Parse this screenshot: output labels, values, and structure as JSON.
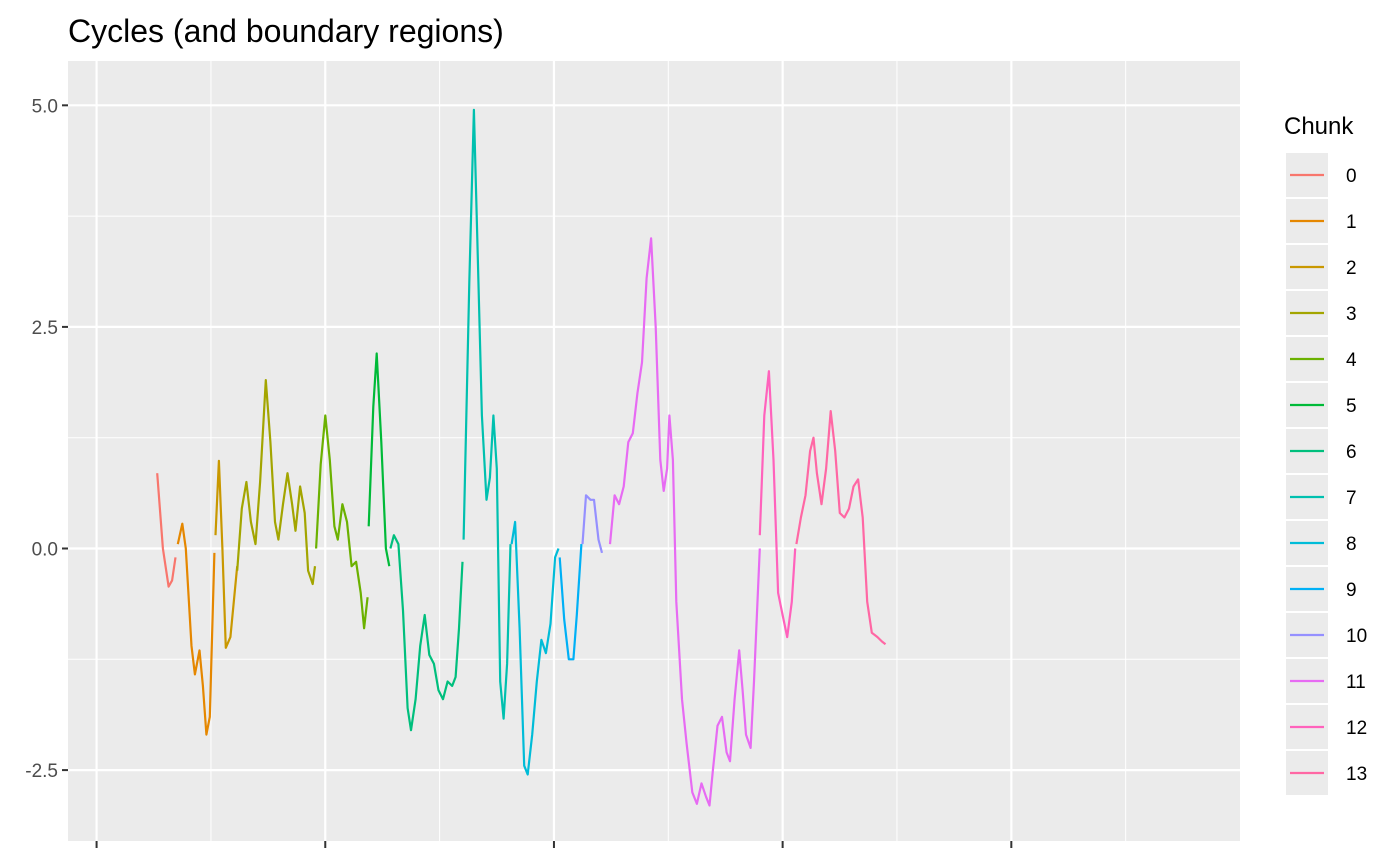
{
  "chart_data": {
    "type": "line",
    "title": "Cycles (and boundary regions)",
    "xlabel": "",
    "ylabel": "",
    "xlim": [
      -0.25,
      10
    ],
    "ylim": [
      -3.3,
      5.5
    ],
    "y_ticks": [
      -2.5,
      0.0,
      2.5,
      5.0
    ],
    "y_tick_labels": [
      "-2.5",
      "0.0",
      "2.5",
      "5.0"
    ],
    "x_ticks": [
      0,
      2,
      4,
      6,
      8
    ],
    "x_tick_labels": [
      "",
      "",
      "",
      "",
      ""
    ],
    "grid": true,
    "panel_background": "#ebebeb",
    "legend": {
      "title": "Chunk",
      "position": "right"
    },
    "series": [
      {
        "name": "0",
        "color": "#F8766D",
        "points": [
          [
            0.53,
            0.85
          ],
          [
            0.58,
            0.0
          ],
          [
            0.63,
            -0.43
          ],
          [
            0.66,
            -0.36
          ],
          [
            0.69,
            -0.1
          ]
        ]
      },
      {
        "name": "1",
        "color": "#E58700",
        "points": [
          [
            0.71,
            0.05
          ],
          [
            0.75,
            0.28
          ],
          [
            0.78,
            0.0
          ],
          [
            0.83,
            -1.1
          ],
          [
            0.86,
            -1.42
          ],
          [
            0.9,
            -1.15
          ],
          [
            0.93,
            -1.55
          ],
          [
            0.96,
            -2.1
          ],
          [
            0.99,
            -1.9
          ],
          [
            1.03,
            -0.05
          ]
        ]
      },
      {
        "name": "2",
        "color": "#C99800",
        "points": [
          [
            1.04,
            0.15
          ],
          [
            1.07,
            0.99
          ],
          [
            1.1,
            0.0
          ],
          [
            1.13,
            -1.12
          ],
          [
            1.17,
            -1.0
          ],
          [
            1.2,
            -0.6
          ],
          [
            1.23,
            -0.2
          ]
        ]
      },
      {
        "name": "3",
        "color": "#A3A500",
        "points": [
          [
            1.23,
            -0.25
          ],
          [
            1.27,
            0.45
          ],
          [
            1.31,
            0.75
          ],
          [
            1.35,
            0.3
          ],
          [
            1.39,
            0.05
          ],
          [
            1.43,
            0.75
          ],
          [
            1.48,
            1.9
          ],
          [
            1.52,
            1.2
          ],
          [
            1.56,
            0.3
          ],
          [
            1.59,
            0.1
          ],
          [
            1.63,
            0.5
          ],
          [
            1.67,
            0.85
          ],
          [
            1.71,
            0.5
          ],
          [
            1.74,
            0.2
          ],
          [
            1.78,
            0.7
          ],
          [
            1.82,
            0.4
          ],
          [
            1.85,
            -0.25
          ],
          [
            1.89,
            -0.4
          ],
          [
            1.91,
            -0.2
          ]
        ]
      },
      {
        "name": "4",
        "color": "#6BB100",
        "points": [
          [
            1.92,
            0.0
          ],
          [
            1.96,
            0.95
          ],
          [
            2.0,
            1.5
          ],
          [
            2.04,
            1.0
          ],
          [
            2.08,
            0.25
          ],
          [
            2.11,
            0.1
          ],
          [
            2.15,
            0.5
          ],
          [
            2.19,
            0.3
          ],
          [
            2.23,
            -0.2
          ],
          [
            2.27,
            -0.15
          ],
          [
            2.31,
            -0.5
          ],
          [
            2.34,
            -0.9
          ],
          [
            2.37,
            -0.55
          ]
        ]
      },
      {
        "name": "5",
        "color": "#00BA38",
        "points": [
          [
            2.38,
            0.25
          ],
          [
            2.42,
            1.6
          ],
          [
            2.45,
            2.2
          ],
          [
            2.49,
            1.2
          ],
          [
            2.53,
            0.0
          ],
          [
            2.56,
            -0.2
          ]
        ]
      },
      {
        "name": "6",
        "color": "#00BF7D",
        "points": [
          [
            2.57,
            0.0
          ],
          [
            2.6,
            0.15
          ],
          [
            2.64,
            0.05
          ],
          [
            2.68,
            -0.7
          ],
          [
            2.72,
            -1.8
          ],
          [
            2.75,
            -2.05
          ],
          [
            2.79,
            -1.7
          ],
          [
            2.83,
            -1.1
          ],
          [
            2.87,
            -0.75
          ],
          [
            2.91,
            -1.2
          ],
          [
            2.95,
            -1.3
          ],
          [
            2.99,
            -1.6
          ],
          [
            3.03,
            -1.7
          ],
          [
            3.07,
            -1.5
          ],
          [
            3.11,
            -1.55
          ],
          [
            3.14,
            -1.45
          ],
          [
            3.17,
            -0.9
          ],
          [
            3.2,
            -0.15
          ]
        ]
      },
      {
        "name": "7",
        "color": "#00C0AF",
        "points": [
          [
            3.21,
            0.1
          ],
          [
            3.26,
            3.0
          ],
          [
            3.3,
            4.95
          ],
          [
            3.33,
            3.5
          ],
          [
            3.37,
            1.5
          ],
          [
            3.41,
            0.55
          ],
          [
            3.44,
            0.8
          ],
          [
            3.47,
            1.5
          ],
          [
            3.5,
            0.9
          ],
          [
            3.53,
            -1.5
          ],
          [
            3.56,
            -1.92
          ],
          [
            3.59,
            -1.3
          ],
          [
            3.62,
            0.05
          ]
        ]
      },
      {
        "name": "8",
        "color": "#00BCD8",
        "points": [
          [
            3.63,
            0.05
          ],
          [
            3.66,
            0.3
          ],
          [
            3.7,
            -0.9
          ],
          [
            3.74,
            -2.45
          ],
          [
            3.77,
            -2.55
          ],
          [
            3.81,
            -2.1
          ],
          [
            3.85,
            -1.5
          ],
          [
            3.89,
            -1.03
          ],
          [
            3.93,
            -1.18
          ],
          [
            3.97,
            -0.85
          ],
          [
            4.01,
            -0.1
          ],
          [
            4.04,
            0.0
          ]
        ]
      },
      {
        "name": "9",
        "color": "#00B0F6",
        "points": [
          [
            4.05,
            -0.1
          ],
          [
            4.09,
            -0.8
          ],
          [
            4.13,
            -1.25
          ],
          [
            4.17,
            -1.25
          ],
          [
            4.2,
            -0.75
          ],
          [
            4.24,
            0.05
          ]
        ]
      },
      {
        "name": "10",
        "color": "#9590FF",
        "points": [
          [
            4.25,
            0.05
          ],
          [
            4.28,
            0.6
          ],
          [
            4.32,
            0.55
          ],
          [
            4.35,
            0.55
          ],
          [
            4.39,
            0.1
          ],
          [
            4.42,
            -0.05
          ]
        ]
      },
      {
        "name": "11",
        "color": "#E76BF3",
        "points": [
          [
            4.49,
            0.05
          ],
          [
            4.53,
            0.6
          ],
          [
            4.57,
            0.5
          ],
          [
            4.61,
            0.7
          ],
          [
            4.65,
            1.2
          ],
          [
            4.69,
            1.3
          ],
          [
            4.73,
            1.75
          ],
          [
            4.77,
            2.1
          ],
          [
            4.81,
            3.05
          ],
          [
            4.85,
            3.5
          ],
          [
            4.89,
            2.5
          ],
          [
            4.93,
            1.0
          ],
          [
            4.96,
            0.65
          ],
          [
            4.99,
            0.9
          ],
          [
            5.01,
            1.5
          ],
          [
            5.04,
            1.0
          ],
          [
            5.07,
            -0.6
          ],
          [
            5.12,
            -1.7
          ],
          [
            5.16,
            -2.2
          ],
          [
            5.21,
            -2.75
          ],
          [
            5.25,
            -2.88
          ],
          [
            5.29,
            -2.65
          ],
          [
            5.33,
            -2.8
          ],
          [
            5.36,
            -2.9
          ],
          [
            5.39,
            -2.5
          ],
          [
            5.43,
            -2.0
          ],
          [
            5.47,
            -1.9
          ],
          [
            5.51,
            -2.3
          ],
          [
            5.54,
            -2.4
          ],
          [
            5.58,
            -1.7
          ],
          [
            5.62,
            -1.15
          ],
          [
            5.65,
            -1.6
          ],
          [
            5.68,
            -2.1
          ],
          [
            5.72,
            -2.25
          ],
          [
            5.75,
            -1.5
          ],
          [
            5.8,
            0.0
          ]
        ]
      },
      {
        "name": "12",
        "color": "#FF62BC",
        "points": [
          [
            5.8,
            0.15
          ],
          [
            5.84,
            1.5
          ],
          [
            5.88,
            2.0
          ],
          [
            5.92,
            1.0
          ],
          [
            5.96,
            -0.5
          ],
          [
            6.0,
            -0.75
          ],
          [
            6.04,
            -1.0
          ],
          [
            6.08,
            -0.6
          ],
          [
            6.11,
            0.0
          ]
        ]
      },
      {
        "name": "13",
        "color": "#FF67A4",
        "points": [
          [
            6.12,
            0.05
          ],
          [
            6.16,
            0.35
          ],
          [
            6.2,
            0.6
          ],
          [
            6.24,
            1.1
          ],
          [
            6.27,
            1.25
          ],
          [
            6.3,
            0.85
          ],
          [
            6.34,
            0.5
          ],
          [
            6.38,
            0.9
          ],
          [
            6.42,
            1.55
          ],
          [
            6.46,
            1.1
          ],
          [
            6.5,
            0.4
          ],
          [
            6.54,
            0.35
          ],
          [
            6.58,
            0.45
          ],
          [
            6.62,
            0.7
          ],
          [
            6.66,
            0.78
          ],
          [
            6.7,
            0.35
          ],
          [
            6.74,
            -0.6
          ],
          [
            6.78,
            -0.95
          ],
          [
            6.83,
            -1.0
          ],
          [
            6.87,
            -1.05
          ],
          [
            6.9,
            -1.08
          ]
        ]
      }
    ]
  }
}
